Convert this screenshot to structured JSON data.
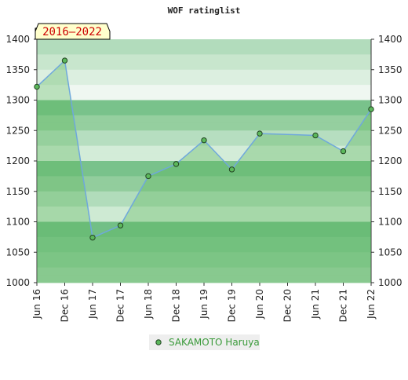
{
  "chart_data": {
    "type": "line",
    "title": "WOF ratinglist",
    "badge": "2016–2022",
    "categories": [
      "Jun 16",
      "Dec 16",
      "Jun 17",
      "Dec 17",
      "Jun 18",
      "Dec 18",
      "Jun 19",
      "Dec 19",
      "Jun 20",
      "Dec 20",
      "Jun 21",
      "Dec 21",
      "Jun 22"
    ],
    "series": [
      {
        "name": "SAKAMOTO Haruya",
        "color": "#5cb85c",
        "x": [
          "Jun 16",
          "Dec 16",
          "Jun 17",
          "Dec 17",
          "Jun 18",
          "Dec 18",
          "Jun 19",
          "Dec 19",
          "Jun 20",
          "Jun 21",
          "Dec 21",
          "Jun 22"
        ],
        "values": [
          1322,
          1365,
          1074,
          1094,
          1175,
          1195,
          1234,
          1186,
          1245,
          1242,
          1216,
          1285
        ]
      }
    ],
    "ylim": [
      1000,
      1400
    ],
    "yticks": [
      1000,
      1050,
      1100,
      1150,
      1200,
      1250,
      1300,
      1350,
      1400
    ],
    "y2lim": [
      1000,
      1400
    ],
    "y2ticks": [
      1000,
      1050,
      1100,
      1150,
      1200,
      1250,
      1300,
      1350,
      1400
    ]
  }
}
